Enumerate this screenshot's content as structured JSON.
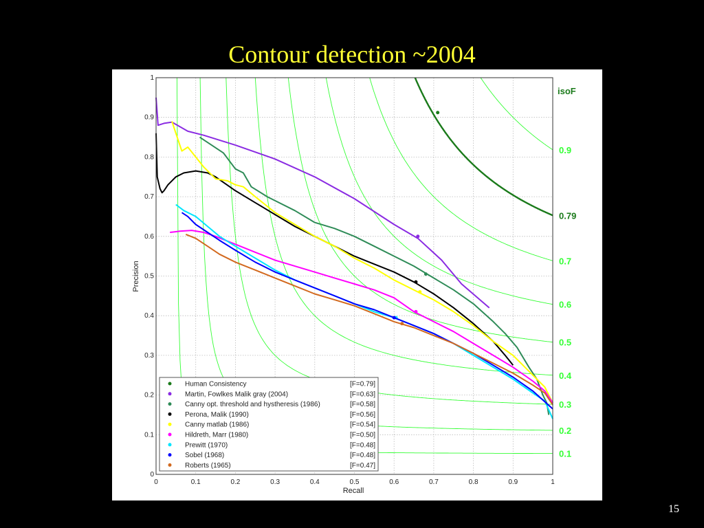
{
  "slide": {
    "title": "Contour detection ~2004",
    "page_number": "15"
  },
  "chart_data": {
    "type": "line",
    "xlabel": "Recall",
    "ylabel": "Precision",
    "xlim": [
      0,
      1
    ],
    "ylim": [
      0,
      1
    ],
    "xticks": [
      "0",
      "0.1",
      "0.2",
      "0.3",
      "0.4",
      "0.5",
      "0.6",
      "0.7",
      "0.8",
      "0.9",
      "1"
    ],
    "yticks": [
      "0",
      "0.1",
      "0.2",
      "0.3",
      "0.4",
      "0.5",
      "0.6",
      "0.7",
      "0.8",
      "0.9",
      "1"
    ],
    "grid": true,
    "legend_position": "lower-left",
    "isoF_title": "isoF",
    "isoF": [
      {
        "F": 0.1,
        "label": "0.1"
      },
      {
        "F": 0.2,
        "label": "0.2"
      },
      {
        "F": 0.3,
        "label": "0.3"
      },
      {
        "F": 0.4,
        "label": "0.4"
      },
      {
        "F": 0.5,
        "label": "0.5"
      },
      {
        "F": 0.6,
        "label": "0.6"
      },
      {
        "F": 0.7,
        "label": "0.7"
      },
      {
        "F": 0.79,
        "label": "0.79",
        "highlight": true
      },
      {
        "F": 0.9,
        "label": "0.9"
      }
    ],
    "iso_color": "#33ff33",
    "iso_highlight_color": "#1a7a1a",
    "series": [
      {
        "name": "Human  Consistency",
        "f_label": "[F=0.79]",
        "color": "#1a7a1a",
        "marker": [
          0.71,
          0.912
        ],
        "points": []
      },
      {
        "name": "Martin, Fowlkes Malik gray (2004)",
        "f_label": "[F=0.63]",
        "color": "#8a2be2",
        "marker": [
          0.66,
          0.6
        ],
        "points": [
          [
            0.0,
            0.95
          ],
          [
            0.005,
            0.88
          ],
          [
            0.02,
            0.885
          ],
          [
            0.04,
            0.888
          ],
          [
            0.08,
            0.865
          ],
          [
            0.12,
            0.855
          ],
          [
            0.2,
            0.83
          ],
          [
            0.3,
            0.795
          ],
          [
            0.4,
            0.75
          ],
          [
            0.5,
            0.695
          ],
          [
            0.6,
            0.63
          ],
          [
            0.66,
            0.595
          ],
          [
            0.72,
            0.54
          ],
          [
            0.77,
            0.48
          ],
          [
            0.84,
            0.42
          ]
        ]
      },
      {
        "name": "Canny opt. threshold and hystheresis (1986)",
        "f_label": "[F=0.58]",
        "color": "#2e8b57",
        "marker": [
          0.68,
          0.505
        ],
        "points": [
          [
            0.11,
            0.85
          ],
          [
            0.14,
            0.83
          ],
          [
            0.17,
            0.81
          ],
          [
            0.2,
            0.77
          ],
          [
            0.22,
            0.76
          ],
          [
            0.24,
            0.725
          ],
          [
            0.28,
            0.7
          ],
          [
            0.3,
            0.69
          ],
          [
            0.35,
            0.665
          ],
          [
            0.4,
            0.635
          ],
          [
            0.45,
            0.62
          ],
          [
            0.5,
            0.6
          ],
          [
            0.55,
            0.575
          ],
          [
            0.6,
            0.55
          ],
          [
            0.65,
            0.525
          ],
          [
            0.7,
            0.495
          ],
          [
            0.75,
            0.465
          ],
          [
            0.8,
            0.43
          ],
          [
            0.85,
            0.385
          ],
          [
            0.88,
            0.355
          ],
          [
            0.91,
            0.32
          ],
          [
            0.94,
            0.27
          ],
          [
            0.96,
            0.24
          ],
          [
            0.975,
            0.2
          ],
          [
            0.985,
            0.18
          ],
          [
            0.99,
            0.15
          ]
        ]
      },
      {
        "name": "Perona, Malik (1990)",
        "f_label": "[F=0.56]",
        "color": "#000000",
        "marker": [
          0.655,
          0.485
        ],
        "points": [
          [
            0.0,
            0.86
          ],
          [
            0.003,
            0.75
          ],
          [
            0.01,
            0.72
          ],
          [
            0.015,
            0.71
          ],
          [
            0.02,
            0.715
          ],
          [
            0.03,
            0.73
          ],
          [
            0.05,
            0.75
          ],
          [
            0.07,
            0.76
          ],
          [
            0.1,
            0.765
          ],
          [
            0.13,
            0.76
          ],
          [
            0.15,
            0.75
          ],
          [
            0.2,
            0.715
          ],
          [
            0.25,
            0.685
          ],
          [
            0.3,
            0.655
          ],
          [
            0.35,
            0.625
          ],
          [
            0.4,
            0.6
          ],
          [
            0.45,
            0.575
          ],
          [
            0.5,
            0.55
          ],
          [
            0.55,
            0.53
          ],
          [
            0.6,
            0.51
          ],
          [
            0.65,
            0.485
          ],
          [
            0.7,
            0.455
          ],
          [
            0.75,
            0.42
          ],
          [
            0.8,
            0.38
          ],
          [
            0.85,
            0.335
          ],
          [
            0.88,
            0.3
          ],
          [
            0.9,
            0.275
          ]
        ]
      },
      {
        "name": "Canny matlab (1986)",
        "f_label": "[F=0.54]",
        "color": "#ffff00",
        "marker": [
          0.665,
          0.46
        ],
        "points": [
          [
            0.04,
            0.89
          ],
          [
            0.05,
            0.86
          ],
          [
            0.065,
            0.815
          ],
          [
            0.08,
            0.825
          ],
          [
            0.1,
            0.8
          ],
          [
            0.12,
            0.775
          ],
          [
            0.15,
            0.745
          ],
          [
            0.18,
            0.74
          ],
          [
            0.2,
            0.73
          ],
          [
            0.22,
            0.725
          ],
          [
            0.25,
            0.7
          ],
          [
            0.3,
            0.66
          ],
          [
            0.35,
            0.63
          ],
          [
            0.4,
            0.6
          ],
          [
            0.45,
            0.575
          ],
          [
            0.5,
            0.545
          ],
          [
            0.55,
            0.52
          ],
          [
            0.6,
            0.49
          ],
          [
            0.66,
            0.46
          ],
          [
            0.7,
            0.44
          ],
          [
            0.75,
            0.41
          ],
          [
            0.8,
            0.375
          ],
          [
            0.85,
            0.335
          ],
          [
            0.9,
            0.3
          ],
          [
            0.93,
            0.27
          ],
          [
            0.96,
            0.24
          ],
          [
            0.98,
            0.22
          ],
          [
            1.0,
            0.18
          ]
        ]
      },
      {
        "name": "Hildreth, Marr (1980)",
        "f_label": "[F=0.50]",
        "color": "#ff00ff",
        "marker": [
          0.655,
          0.41
        ],
        "points": [
          [
            0.035,
            0.61
          ],
          [
            0.06,
            0.613
          ],
          [
            0.09,
            0.615
          ],
          [
            0.12,
            0.61
          ],
          [
            0.15,
            0.6
          ],
          [
            0.2,
            0.58
          ],
          [
            0.25,
            0.56
          ],
          [
            0.3,
            0.54
          ],
          [
            0.35,
            0.525
          ],
          [
            0.4,
            0.51
          ],
          [
            0.45,
            0.495
          ],
          [
            0.5,
            0.48
          ],
          [
            0.55,
            0.465
          ],
          [
            0.6,
            0.445
          ],
          [
            0.65,
            0.41
          ],
          [
            0.7,
            0.385
          ],
          [
            0.75,
            0.36
          ],
          [
            0.8,
            0.33
          ],
          [
            0.85,
            0.3
          ],
          [
            0.9,
            0.27
          ],
          [
            0.95,
            0.235
          ],
          [
            0.98,
            0.21
          ],
          [
            1.0,
            0.18
          ]
        ]
      },
      {
        "name": "Prewitt  (1970)",
        "f_label": "[F=0.48]",
        "color": "#00e5ff",
        "marker": [
          0.605,
          0.395
        ],
        "points": [
          [
            0.05,
            0.68
          ],
          [
            0.07,
            0.665
          ],
          [
            0.1,
            0.65
          ],
          [
            0.13,
            0.625
          ],
          [
            0.16,
            0.6
          ],
          [
            0.2,
            0.575
          ],
          [
            0.25,
            0.545
          ],
          [
            0.3,
            0.515
          ],
          [
            0.35,
            0.49
          ],
          [
            0.4,
            0.47
          ],
          [
            0.45,
            0.45
          ],
          [
            0.5,
            0.43
          ],
          [
            0.55,
            0.41
          ],
          [
            0.6,
            0.395
          ],
          [
            0.65,
            0.375
          ],
          [
            0.7,
            0.355
          ],
          [
            0.75,
            0.33
          ],
          [
            0.8,
            0.3
          ],
          [
            0.85,
            0.27
          ],
          [
            0.9,
            0.24
          ],
          [
            0.95,
            0.205
          ],
          [
            0.98,
            0.185
          ],
          [
            1.0,
            0.14
          ]
        ]
      },
      {
        "name": "Sobel  (1968)",
        "f_label": "[F=0.48]",
        "color": "#0000ff",
        "marker": [
          0.6,
          0.395
        ],
        "points": [
          [
            0.065,
            0.66
          ],
          [
            0.08,
            0.65
          ],
          [
            0.1,
            0.63
          ],
          [
            0.13,
            0.61
          ],
          [
            0.16,
            0.59
          ],
          [
            0.2,
            0.565
          ],
          [
            0.25,
            0.535
          ],
          [
            0.3,
            0.51
          ],
          [
            0.35,
            0.49
          ],
          [
            0.4,
            0.47
          ],
          [
            0.45,
            0.45
          ],
          [
            0.5,
            0.43
          ],
          [
            0.55,
            0.415
          ],
          [
            0.6,
            0.395
          ],
          [
            0.65,
            0.375
          ],
          [
            0.7,
            0.355
          ],
          [
            0.75,
            0.33
          ],
          [
            0.8,
            0.305
          ],
          [
            0.85,
            0.275
          ],
          [
            0.9,
            0.245
          ],
          [
            0.95,
            0.21
          ],
          [
            1.0,
            0.165
          ]
        ]
      },
      {
        "name": "Roberts (1965)",
        "f_label": "[F=0.47]",
        "color": "#d2691e",
        "marker": [
          0.62,
          0.38
        ],
        "points": [
          [
            0.075,
            0.605
          ],
          [
            0.1,
            0.595
          ],
          [
            0.13,
            0.575
          ],
          [
            0.16,
            0.555
          ],
          [
            0.2,
            0.535
          ],
          [
            0.25,
            0.515
          ],
          [
            0.3,
            0.495
          ],
          [
            0.35,
            0.475
          ],
          [
            0.4,
            0.455
          ],
          [
            0.45,
            0.44
          ],
          [
            0.5,
            0.425
          ],
          [
            0.55,
            0.405
          ],
          [
            0.6,
            0.385
          ],
          [
            0.65,
            0.37
          ],
          [
            0.7,
            0.35
          ],
          [
            0.75,
            0.33
          ],
          [
            0.8,
            0.305
          ],
          [
            0.85,
            0.28
          ],
          [
            0.9,
            0.255
          ],
          [
            0.95,
            0.225
          ],
          [
            0.98,
            0.205
          ],
          [
            1.0,
            0.175
          ]
        ]
      }
    ]
  }
}
